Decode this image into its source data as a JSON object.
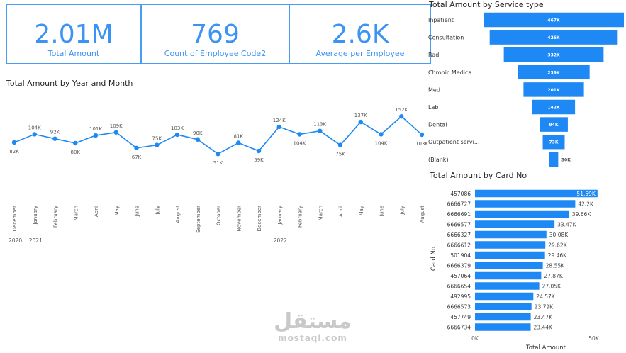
{
  "kpis": [
    {
      "value": "2.01M",
      "label": "Total Amount"
    },
    {
      "value": "769",
      "label": "Count of Employee Code2"
    },
    {
      "value": "2.6K",
      "label": "Average per Employee"
    }
  ],
  "colors": {
    "accent": "#1e88f5",
    "kpi_text": "#3a93f5",
    "kpi_border": "#4a9cf0"
  },
  "chart_data": [
    {
      "type": "line",
      "title": "Total Amount by Year and Month",
      "x": [
        "December",
        "January",
        "February",
        "March",
        "April",
        "May",
        "June",
        "July",
        "August",
        "September",
        "October",
        "November",
        "December",
        "January",
        "February",
        "March",
        "April",
        "May",
        "June",
        "July",
        "August"
      ],
      "years": [
        {
          "label": "2020",
          "start": 0
        },
        {
          "label": "2021",
          "start": 1
        },
        {
          "label": "2022",
          "start": 13
        }
      ],
      "values": [
        82,
        104,
        92,
        80,
        101,
        109,
        67,
        75,
        103,
        90,
        51,
        81,
        59,
        124,
        104,
        113,
        75,
        137,
        104,
        152,
        103
      ],
      "labels": [
        "82K",
        "104K",
        "92K",
        "80K",
        "101K",
        "109K",
        "67K",
        "75K",
        "103K",
        "90K",
        "51K",
        "81K",
        "59K",
        "124K",
        "104K",
        "113K",
        "75K",
        "137K",
        "104K",
        "152K",
        "103K"
      ],
      "label_pos": [
        "below",
        "above",
        "above",
        "below",
        "above",
        "above",
        "below",
        "above",
        "above",
        "above",
        "below",
        "above",
        "below",
        "above",
        "below",
        "above",
        "below",
        "above",
        "below",
        "above",
        "below"
      ],
      "unit": "K",
      "ylim": [
        0,
        160
      ],
      "grid": false
    },
    {
      "type": "funnel",
      "title": "Total Amount by Service type",
      "categories": [
        "Inpatient",
        "Consultation",
        "Rad",
        "Chronic Medica...",
        "Med",
        "Lab",
        "Dental",
        "Outpatient servi...",
        "(Blank)"
      ],
      "values": [
        467,
        426,
        332,
        239,
        201,
        142,
        94,
        73,
        30
      ],
      "labels": [
        "467K",
        "426K",
        "332K",
        "239K",
        "201K",
        "142K",
        "94K",
        "73K",
        "30K"
      ]
    },
    {
      "type": "bar",
      "orientation": "horizontal",
      "title": "Total Amount by Card No",
      "ylabel": "Card No",
      "xlabel": "Total Amount",
      "categories": [
        "457086",
        "6666727",
        "6666691",
        "6666577",
        "6666327",
        "6666612",
        "501904",
        "6666379",
        "457064",
        "6666654",
        "492995",
        "6666573",
        "457749",
        "6666734"
      ],
      "values": [
        51.59,
        42.2,
        39.66,
        33.47,
        30.08,
        29.62,
        29.46,
        28.55,
        27.87,
        27.05,
        24.57,
        23.79,
        23.47,
        23.44
      ],
      "labels": [
        "51.59K",
        "42.2K",
        "39.66K",
        "33.47K",
        "30.08K",
        "29.62K",
        "29.46K",
        "28.55K",
        "27.87K",
        "27.05K",
        "24.57K",
        "23.79K",
        "23.47K",
        "23.44K"
      ],
      "xticks": [
        "0K",
        "50K"
      ],
      "xlim": [
        0,
        50
      ]
    }
  ],
  "watermark": {
    "arabic": "مستقل",
    "latin": "mostaql.com"
  }
}
